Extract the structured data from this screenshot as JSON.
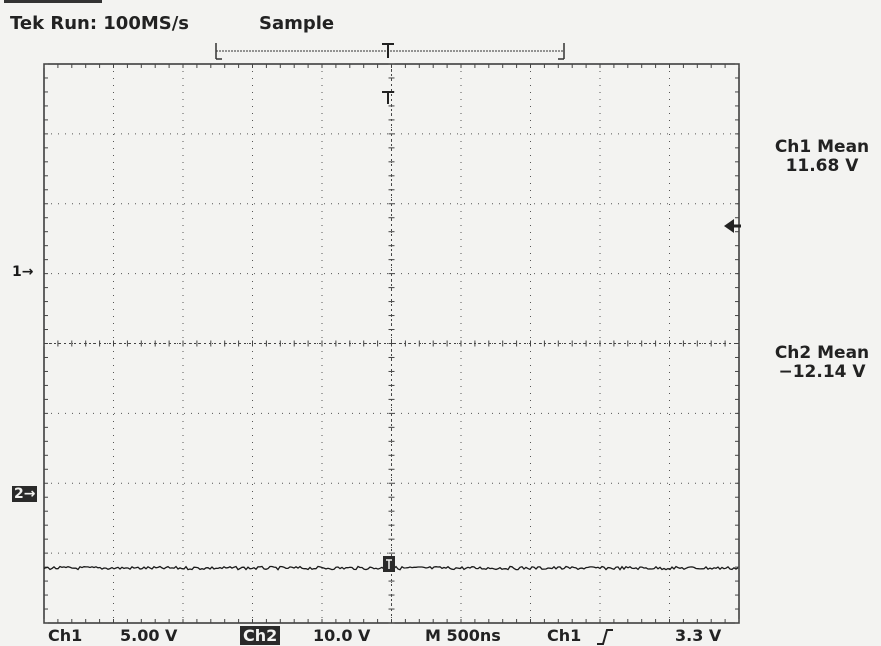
{
  "header": {
    "status": "Tek Run: 100MS/s",
    "acq_mode": "Sample"
  },
  "measurements": {
    "ch1_label": "Ch1 Mean",
    "ch1_value": "11.68 V",
    "ch2_label": "Ch2 Mean",
    "ch2_value": "−12.14 V"
  },
  "markers": {
    "ch1": "1→",
    "ch2": "2→"
  },
  "footer": {
    "ch1_name": "Ch1",
    "ch1_scale": "5.00 V",
    "ch2_name": "Ch2",
    "ch2_scale": "10.0 V",
    "timebase": "M 500ns",
    "trigger_source": "Ch1",
    "trigger_level": "3.3 V"
  },
  "colors": {
    "background": "#f3f3f1",
    "trace": "#1a1a1a",
    "grid": "#444444"
  },
  "icons": {
    "trigger_position": "trigger-t-icon",
    "trigger_level": "left-arrow-icon",
    "trigger_slope": "rising-edge-icon"
  },
  "chart_data": {
    "type": "line",
    "time_per_div": "500ns",
    "volts_per_div": {
      "Ch1": 5.0,
      "Ch2": 10.0
    },
    "divisions": {
      "x": 10,
      "y": 8
    },
    "series": [
      {
        "name": "Ch1",
        "mean_volts": 11.68,
        "ground_level_div": 3.0
      },
      {
        "name": "Ch2",
        "mean_volts": -12.14,
        "ground_level_div": -2.0
      }
    ],
    "grid": true
  }
}
